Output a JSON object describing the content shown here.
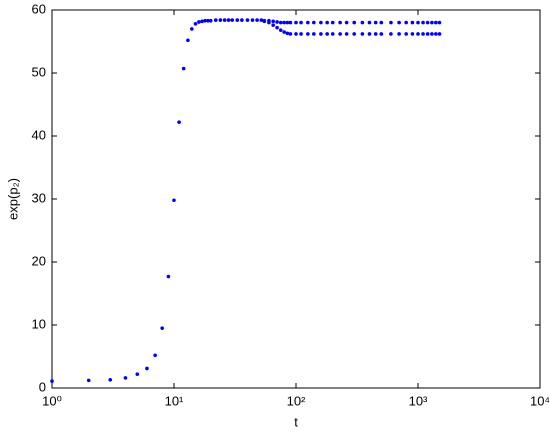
{
  "chart_data": {
    "type": "scatter",
    "xlabel": "t",
    "ylabel": "exp(p₂)",
    "xscale": "log",
    "xlim": [
      1,
      10000
    ],
    "xticks": [
      {
        "value": 1,
        "label": "10⁰"
      },
      {
        "value": 10,
        "label": "10¹"
      },
      {
        "value": 100,
        "label": "10²"
      },
      {
        "value": 1000,
        "label": "10³"
      },
      {
        "value": 10000,
        "label": "10⁴"
      }
    ],
    "ylim": [
      0,
      60
    ],
    "yticks": [
      0,
      10,
      20,
      30,
      40,
      50,
      60
    ],
    "grid": false,
    "series": [
      {
        "color": "#0000ff",
        "x": [
          1,
          2,
          3,
          4,
          5,
          6,
          7,
          8,
          9,
          10,
          11,
          12,
          13,
          14,
          15,
          16,
          17,
          18,
          19,
          20,
          22,
          24,
          26,
          28,
          30,
          33,
          36,
          40,
          44,
          48,
          52
        ],
        "values": [
          1.1,
          1.2,
          1.3,
          1.6,
          2.2,
          3.1,
          5.2,
          9.5,
          17.7,
          29.8,
          42.2,
          50.7,
          55.2,
          57.0,
          57.8,
          58.1,
          58.2,
          58.3,
          58.3,
          58.3,
          58.4,
          58.4,
          58.4,
          58.4,
          58.4,
          58.4,
          58.4,
          58.4,
          58.4,
          58.4,
          58.4
        ]
      },
      {
        "color": "#0000ff",
        "x": [
          55,
          60,
          65,
          70,
          75,
          80,
          85,
          90,
          100,
          110,
          125,
          140,
          160,
          180,
          200,
          230,
          260,
          300,
          350,
          400,
          450,
          500,
          600,
          700,
          800,
          900,
          1000,
          1100,
          1200,
          1300,
          1400,
          1500
        ],
        "values": [
          58.3,
          58.3,
          58.2,
          58.1,
          58.0,
          58.0,
          58.0,
          58.0,
          58.0,
          58.0,
          58.0,
          58.0,
          58.0,
          58.0,
          58.0,
          58.0,
          58.0,
          58.0,
          58.0,
          58.0,
          58.0,
          58.0,
          58.0,
          58.0,
          58.0,
          58.0,
          58.0,
          58.0,
          58.0,
          58.0,
          58.0,
          58.0
        ]
      },
      {
        "color": "#0000ff",
        "x": [
          55,
          60,
          65,
          70,
          75,
          80,
          85,
          90,
          100,
          110,
          125,
          140,
          160,
          180,
          200,
          230,
          260,
          300,
          350,
          400,
          450,
          500,
          600,
          700,
          800,
          900,
          1000,
          1100,
          1200,
          1300,
          1400,
          1500
        ],
        "values": [
          58.2,
          58.0,
          57.6,
          57.2,
          56.8,
          56.5,
          56.3,
          56.2,
          56.2,
          56.2,
          56.2,
          56.2,
          56.2,
          56.2,
          56.2,
          56.2,
          56.2,
          56.2,
          56.2,
          56.2,
          56.2,
          56.2,
          56.2,
          56.2,
          56.2,
          56.2,
          56.2,
          56.2,
          56.2,
          56.2,
          56.2,
          56.2
        ]
      }
    ]
  }
}
